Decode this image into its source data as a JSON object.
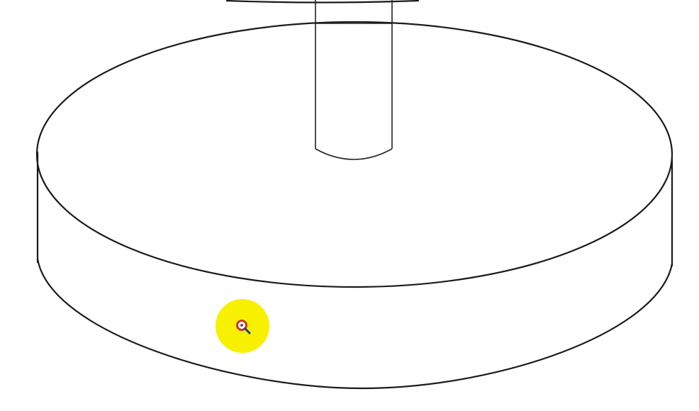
{
  "viewport": {
    "background": "#ffffff",
    "model": "cylindrical-disc-with-shaft"
  },
  "cursor": {
    "icon": "zoom-magnifier-icon",
    "highlight_color": "#f7f000",
    "lens_color": "#d0342c",
    "handle_color": "#1f3a93"
  }
}
